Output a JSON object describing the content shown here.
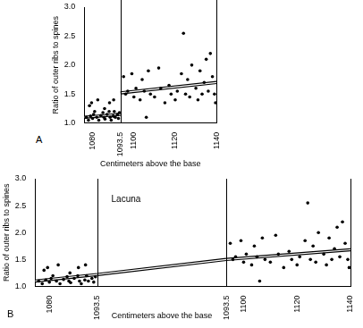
{
  "chart_data": [
    {
      "type": "scatter",
      "label": "A",
      "x_label": "Centimeters above the base",
      "y_label": "Ratio of outer ribs to spines",
      "xlim": [
        1076,
        1140
      ],
      "xticks": [
        1080,
        1093.5,
        1100,
        1120,
        1140
      ],
      "ylim": [
        1,
        3
      ],
      "yticks": [
        {
          "value": 1,
          "label": "1.0"
        },
        {
          "value": 1.5,
          "label": "1.5"
        },
        {
          "value": 2,
          "label": "2.0"
        },
        {
          "value": 2.5,
          "label": "2.5"
        },
        {
          "value": 3,
          "label": "3.0"
        }
      ],
      "divisions": [
        1093.5,
        1140
      ],
      "x": [
        1077,
        1078,
        1079,
        1080,
        1080.5,
        1081,
        1082,
        1083,
        1084,
        1085,
        1085.5,
        1086,
        1087,
        1088,
        1088.5,
        1089,
        1090,
        1090.5,
        1091,
        1092,
        1092.5,
        1093,
        1078.5,
        1079.5,
        1082.5,
        1085.8,
        1088.2,
        1090.2,
        1095,
        1096,
        1097,
        1099,
        1100,
        1101,
        1103,
        1104,
        1105,
        1106,
        1107,
        1108,
        1110,
        1112,
        1113,
        1115,
        1117,
        1118,
        1120,
        1121,
        1123,
        1124,
        1125,
        1126,
        1127,
        1128,
        1130,
        1131,
        1132,
        1133,
        1134,
        1135,
        1136,
        1137,
        1138,
        1139,
        1139.5
      ],
      "values": [
        1.1,
        1.05,
        1.12,
        1.08,
        1.15,
        1.2,
        1.1,
        1.05,
        1.13,
        1.18,
        1.1,
        1.07,
        1.15,
        1.2,
        1.1,
        1.05,
        1.12,
        1.2,
        1.1,
        1.15,
        1.08,
        1.18,
        1.3,
        1.35,
        1.4,
        1.25,
        1.35,
        1.4,
        1.8,
        1.5,
        1.55,
        1.85,
        1.45,
        1.6,
        1.4,
        1.75,
        1.55,
        1.1,
        1.9,
        1.5,
        1.45,
        1.95,
        1.6,
        1.35,
        1.65,
        1.5,
        1.4,
        1.55,
        1.85,
        2.55,
        1.5,
        1.75,
        1.45,
        2.0,
        1.6,
        1.4,
        1.9,
        1.5,
        1.7,
        2.1,
        1.55,
        2.2,
        1.8,
        1.5,
        1.35
      ],
      "trend": [
        {
          "x": [
            1076,
            1093.5
          ],
          "y": [
            1.1,
            1.15
          ]
        },
        {
          "x": [
            1093.5,
            1140
          ],
          "y": [
            1.52,
            1.7
          ]
        }
      ],
      "color": "#000000",
      "marker": "circle",
      "line_style": "double",
      "grid": false
    },
    {
      "type": "scatter",
      "label": "B",
      "x_label": "Centimeters above the base",
      "y_label": "Ratio of outer ribs to spines",
      "annotations": [
        "Lacuna"
      ],
      "segments": [
        {
          "xlim": [
            1076,
            1093.5
          ],
          "xticks": [
            1080,
            1093.5
          ]
        },
        {
          "xlim": [
            1093.5,
            1140
          ],
          "xticks": [
            1093.5,
            1100,
            1120,
            1140
          ]
        }
      ],
      "ylim": [
        1,
        3
      ],
      "yticks": [
        {
          "value": 1,
          "label": "1.0"
        },
        {
          "value": 1.5,
          "label": "1.5"
        },
        {
          "value": 2,
          "label": "2.0"
        },
        {
          "value": 2.5,
          "label": "2.5"
        },
        {
          "value": 3,
          "label": "3.0"
        }
      ],
      "divisions": [
        1093.5,
        1140
      ],
      "x": [
        1077,
        1078,
        1079,
        1080,
        1080.5,
        1081,
        1082,
        1083,
        1084,
        1085,
        1085.5,
        1086,
        1087,
        1088,
        1088.5,
        1089,
        1090,
        1090.5,
        1091,
        1092,
        1092.5,
        1093,
        1078.5,
        1079.5,
        1082.5,
        1085.8,
        1088.2,
        1090.2,
        1095,
        1096,
        1097,
        1099,
        1100,
        1101,
        1103,
        1104,
        1105,
        1106,
        1107,
        1108,
        1110,
        1112,
        1113,
        1115,
        1117,
        1118,
        1120,
        1121,
        1123,
        1124,
        1125,
        1126,
        1127,
        1128,
        1130,
        1131,
        1132,
        1133,
        1134,
        1135,
        1136,
        1137,
        1138,
        1139,
        1139.5
      ],
      "values": [
        1.1,
        1.05,
        1.12,
        1.08,
        1.15,
        1.2,
        1.1,
        1.05,
        1.13,
        1.18,
        1.1,
        1.07,
        1.15,
        1.2,
        1.1,
        1.05,
        1.12,
        1.2,
        1.1,
        1.15,
        1.08,
        1.18,
        1.3,
        1.35,
        1.4,
        1.25,
        1.35,
        1.4,
        1.8,
        1.5,
        1.55,
        1.85,
        1.45,
        1.6,
        1.4,
        1.75,
        1.55,
        1.1,
        1.9,
        1.5,
        1.45,
        1.95,
        1.6,
        1.35,
        1.65,
        1.5,
        1.4,
        1.55,
        1.85,
        2.55,
        1.5,
        1.75,
        1.45,
        2.0,
        1.6,
        1.4,
        1.9,
        1.5,
        1.7,
        2.1,
        1.55,
        2.2,
        1.8,
        1.5,
        1.35
      ],
      "trend": [
        {
          "x": [
            1076,
            1093.5
          ],
          "y": [
            1.1,
            1.22
          ]
        },
        {
          "x": [
            1093.5,
            1140
          ],
          "y": [
            1.5,
            1.68
          ]
        }
      ],
      "color": "#000000",
      "marker": "circle",
      "line_style": "double",
      "grid": false
    }
  ]
}
